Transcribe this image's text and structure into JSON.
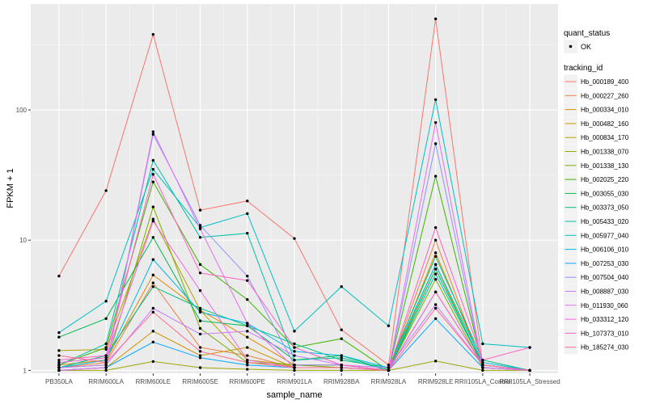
{
  "chart_data": {
    "type": "line",
    "xlabel": "sample_name",
    "ylabel": "FPKM + 1",
    "y_scale": "log10",
    "ylim": [
      0.95,
      650
    ],
    "yticks": [
      1,
      10,
      100
    ],
    "ytick_labels": [
      "1",
      "10",
      "100"
    ],
    "grid": true,
    "categories": [
      "PB350LA",
      "RRIM600LA",
      "RRIM600LE",
      "RRIM600SE",
      "RRIM600PE",
      "RRIM901LA",
      "RRIM928BA",
      "RRIM928LA",
      "RRIM928LE",
      "RRII105LA_Control",
      "RRII105LA_Stressed"
    ],
    "legend_position": "right",
    "shape_legend": {
      "title": "quant_status",
      "entries": [
        "OK"
      ]
    },
    "color_legend_title": "tracking_id",
    "series": [
      {
        "name": "Hb_000189_400",
        "color": "#F8766D",
        "values": [
          5.3,
          24.0,
          380.0,
          17.0,
          20.0,
          10.3,
          2.05,
          1.1,
          500.0,
          1.1,
          1.0
        ]
      },
      {
        "name": "Hb_000227_260",
        "color": "#EE8043",
        "values": [
          1.05,
          1.15,
          4.7,
          1.5,
          1.3,
          1.05,
          1.05,
          1.0,
          10.0,
          1.05,
          1.0
        ]
      },
      {
        "name": "Hb_000334_010",
        "color": "#E08B00",
        "values": [
          1.1,
          1.2,
          5.4,
          2.9,
          1.8,
          1.1,
          1.1,
          1.0,
          8.0,
          1.1,
          1.0
        ]
      },
      {
        "name": "Hb_000482_160",
        "color": "#CF9400",
        "values": [
          1.0,
          1.05,
          2.0,
          1.3,
          1.5,
          1.05,
          1.05,
          1.0,
          6.5,
          1.05,
          1.0
        ]
      },
      {
        "name": "Hb_000834_170",
        "color": "#B79F00",
        "values": [
          1.42,
          1.45,
          14.5,
          2.9,
          1.2,
          1.1,
          1.1,
          1.0,
          4.0,
          1.1,
          1.0
        ]
      },
      {
        "name": "Hb_001338_070",
        "color": "#9DA700",
        "values": [
          1.0,
          1.0,
          1.17,
          1.05,
          1.02,
          1.0,
          1.0,
          1.0,
          1.18,
          1.0,
          1.0
        ]
      },
      {
        "name": "Hb_001338_130",
        "color": "#7CAE00",
        "values": [
          1.05,
          1.1,
          18.0,
          2.1,
          1.15,
          1.1,
          1.05,
          1.0,
          5.0,
          1.05,
          1.0
        ]
      },
      {
        "name": "Hb_002025_220",
        "color": "#39B600",
        "values": [
          1.1,
          1.5,
          28.0,
          6.5,
          3.5,
          1.5,
          1.75,
          1.0,
          31.0,
          1.1,
          1.0
        ]
      },
      {
        "name": "Hb_003055_030",
        "color": "#00BB4E",
        "values": [
          1.8,
          2.5,
          10.5,
          2.4,
          2.2,
          1.2,
          1.3,
          1.0,
          6.0,
          1.1,
          1.0
        ]
      },
      {
        "name": "Hb_003373_050",
        "color": "#00BF7D",
        "values": [
          1.05,
          1.3,
          4.4,
          3.0,
          2.2,
          1.6,
          1.2,
          1.05,
          7.5,
          1.2,
          1.0
        ]
      },
      {
        "name": "Hb_005433_020",
        "color": "#00C1A3",
        "values": [
          1.1,
          1.6,
          41.0,
          10.5,
          11.3,
          1.2,
          1.25,
          1.0,
          5.5,
          1.1,
          1.0
        ]
      },
      {
        "name": "Hb_005977_040",
        "color": "#00BFC4",
        "values": [
          1.95,
          3.4,
          35.0,
          12.5,
          16.0,
          2.0,
          4.4,
          2.2,
          120.0,
          1.6,
          1.5
        ]
      },
      {
        "name": "Hb_006106_010",
        "color": "#00B8E5",
        "values": [
          1.05,
          1.2,
          7.1,
          2.8,
          2.3,
          1.4,
          1.3,
          1.05,
          6.5,
          1.15,
          1.0
        ]
      },
      {
        "name": "Hb_007253_030",
        "color": "#00A9FF",
        "values": [
          1.0,
          1.05,
          1.65,
          1.25,
          1.1,
          1.05,
          1.05,
          1.0,
          2.5,
          1.05,
          1.0
        ]
      },
      {
        "name": "Hb_007504_040",
        "color": "#8F91FF",
        "values": [
          1.0,
          1.05,
          65.0,
          13.0,
          5.3,
          1.1,
          1.1,
          1.0,
          55.0,
          1.05,
          1.0
        ]
      },
      {
        "name": "Hb_008887_030",
        "color": "#C77CFF",
        "values": [
          1.05,
          1.1,
          3.0,
          1.9,
          2.0,
          1.3,
          1.1,
          1.05,
          3.2,
          1.1,
          1.0
        ]
      },
      {
        "name": "Hb_011930_060",
        "color": "#E36EF6",
        "values": [
          1.0,
          1.05,
          68.0,
          12.2,
          2.3,
          1.05,
          1.05,
          1.0,
          80.0,
          1.05,
          1.0
        ]
      },
      {
        "name": "Hb_033312_120",
        "color": "#F564E3",
        "values": [
          1.15,
          1.25,
          14.0,
          4.1,
          1.2,
          1.05,
          1.05,
          1.0,
          4.0,
          1.1,
          1.0
        ]
      },
      {
        "name": "Hb_107373_010",
        "color": "#FF61C3",
        "values": [
          1.2,
          1.3,
          32.0,
          5.6,
          4.9,
          1.5,
          1.1,
          1.0,
          12.5,
          1.2,
          1.5
        ]
      },
      {
        "name": "Hb_185274_030",
        "color": "#FF6C91",
        "values": [
          1.3,
          1.15,
          2.8,
          1.4,
          1.15,
          1.05,
          1.05,
          1.0,
          3.0,
          1.1,
          1.0
        ]
      }
    ]
  }
}
